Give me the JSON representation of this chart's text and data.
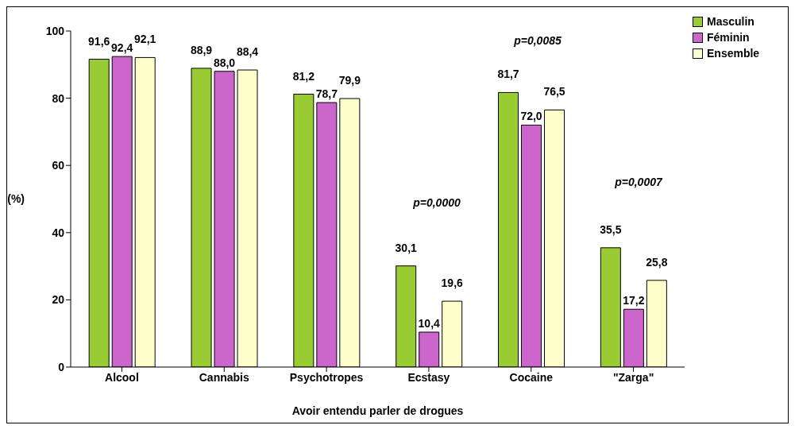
{
  "chart_data": {
    "type": "bar",
    "xlabel": "Avoir entendu parler de drogues",
    "ylabel": "(%)",
    "categories": [
      "Alcool",
      "Cannabis",
      "Psychotropes",
      "Ecstasy",
      "Cocaine",
      "\"Zarga\""
    ],
    "series": [
      {
        "name": "Masculin",
        "color": "#99cc33",
        "values": [
          91.6,
          88.9,
          81.2,
          30.1,
          81.7,
          35.5
        ],
        "value_labels": [
          "91,6",
          "88,9",
          "81,2",
          "30,1",
          "81,7",
          "35,5"
        ]
      },
      {
        "name": "Féminin",
        "color": "#cc66cc",
        "values": [
          92.4,
          88.0,
          78.7,
          10.4,
          72.0,
          17.2
        ],
        "value_labels": [
          "92,4",
          "88,0",
          "78,7",
          "10,4",
          "72,0",
          "17,2"
        ]
      },
      {
        "name": "Ensemble",
        "color": "#ffffcc",
        "values": [
          92.1,
          88.4,
          79.9,
          19.6,
          76.5,
          25.8
        ],
        "value_labels": [
          "92,1",
          "88,4",
          "79,9",
          "19,6",
          "76,5",
          "25,8"
        ]
      }
    ],
    "ylim": [
      0,
      100
    ],
    "yticks": [
      0,
      20,
      40,
      60,
      80,
      100
    ],
    "legend": "top right",
    "annotations": [
      "p=0,0000",
      "p=0,0085",
      "p=0,0007"
    ]
  }
}
